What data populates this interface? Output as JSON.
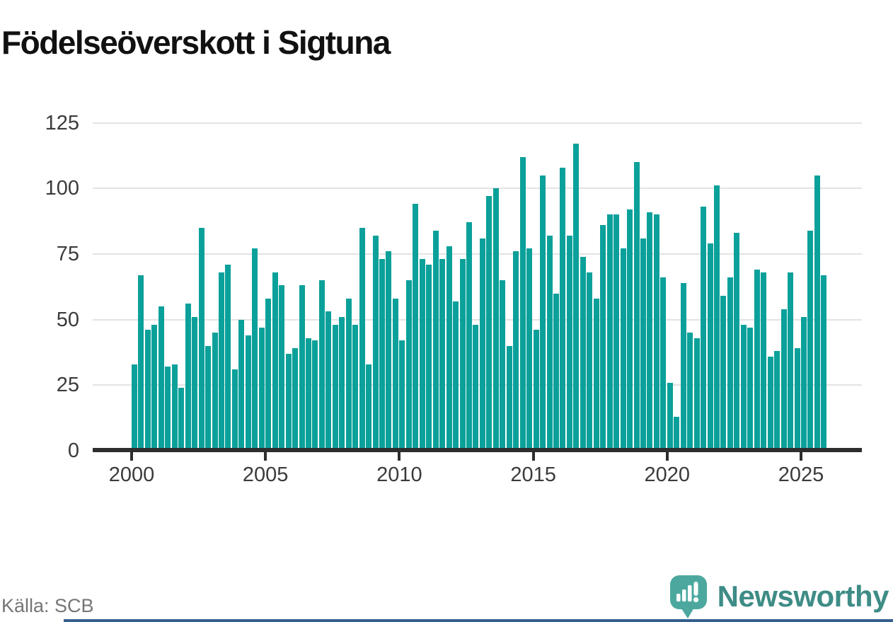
{
  "title": "Födelseöverskott i Sigtuna",
  "source": "Källa: SCB",
  "brand": {
    "name": "Newsworthy",
    "wordmark_color": "#3e8c86",
    "bubble_color": "#4ca89f"
  },
  "chart_data": {
    "type": "bar",
    "title": "Födelseöverskott i Sigtuna",
    "xlabel": "",
    "ylabel": "",
    "frequency": "quarterly",
    "start_period": "2000-Q1",
    "end_period": "2025-Q4",
    "bar_color": "#0ba19a",
    "grid": true,
    "ylim": [
      0,
      130
    ],
    "y_ticks": [
      0,
      25,
      50,
      75,
      100,
      125
    ],
    "x_tick_labels": [
      "2000",
      "2005",
      "2010",
      "2015",
      "2020",
      "2025"
    ],
    "values": [
      33,
      67,
      46,
      48,
      55,
      32,
      33,
      24,
      56,
      51,
      85,
      40,
      45,
      68,
      71,
      31,
      50,
      44,
      77,
      47,
      58,
      68,
      63,
      37,
      39,
      63,
      43,
      42,
      65,
      53,
      48,
      51,
      58,
      48,
      85,
      33,
      82,
      73,
      76,
      58,
      42,
      65,
      94,
      73,
      71,
      84,
      73,
      78,
      57,
      73,
      87,
      48,
      81,
      97,
      100,
      65,
      40,
      76,
      112,
      77,
      46,
      105,
      82,
      60,
      108,
      82,
      117,
      74,
      68,
      58,
      86,
      90,
      90,
      77,
      92,
      110,
      81,
      91,
      90,
      66,
      26,
      13,
      64,
      45,
      43,
      93,
      79,
      101,
      59,
      66,
      83,
      48,
      47,
      69,
      68,
      36,
      38,
      54,
      68,
      39,
      51,
      84,
      105,
      67
    ]
  }
}
